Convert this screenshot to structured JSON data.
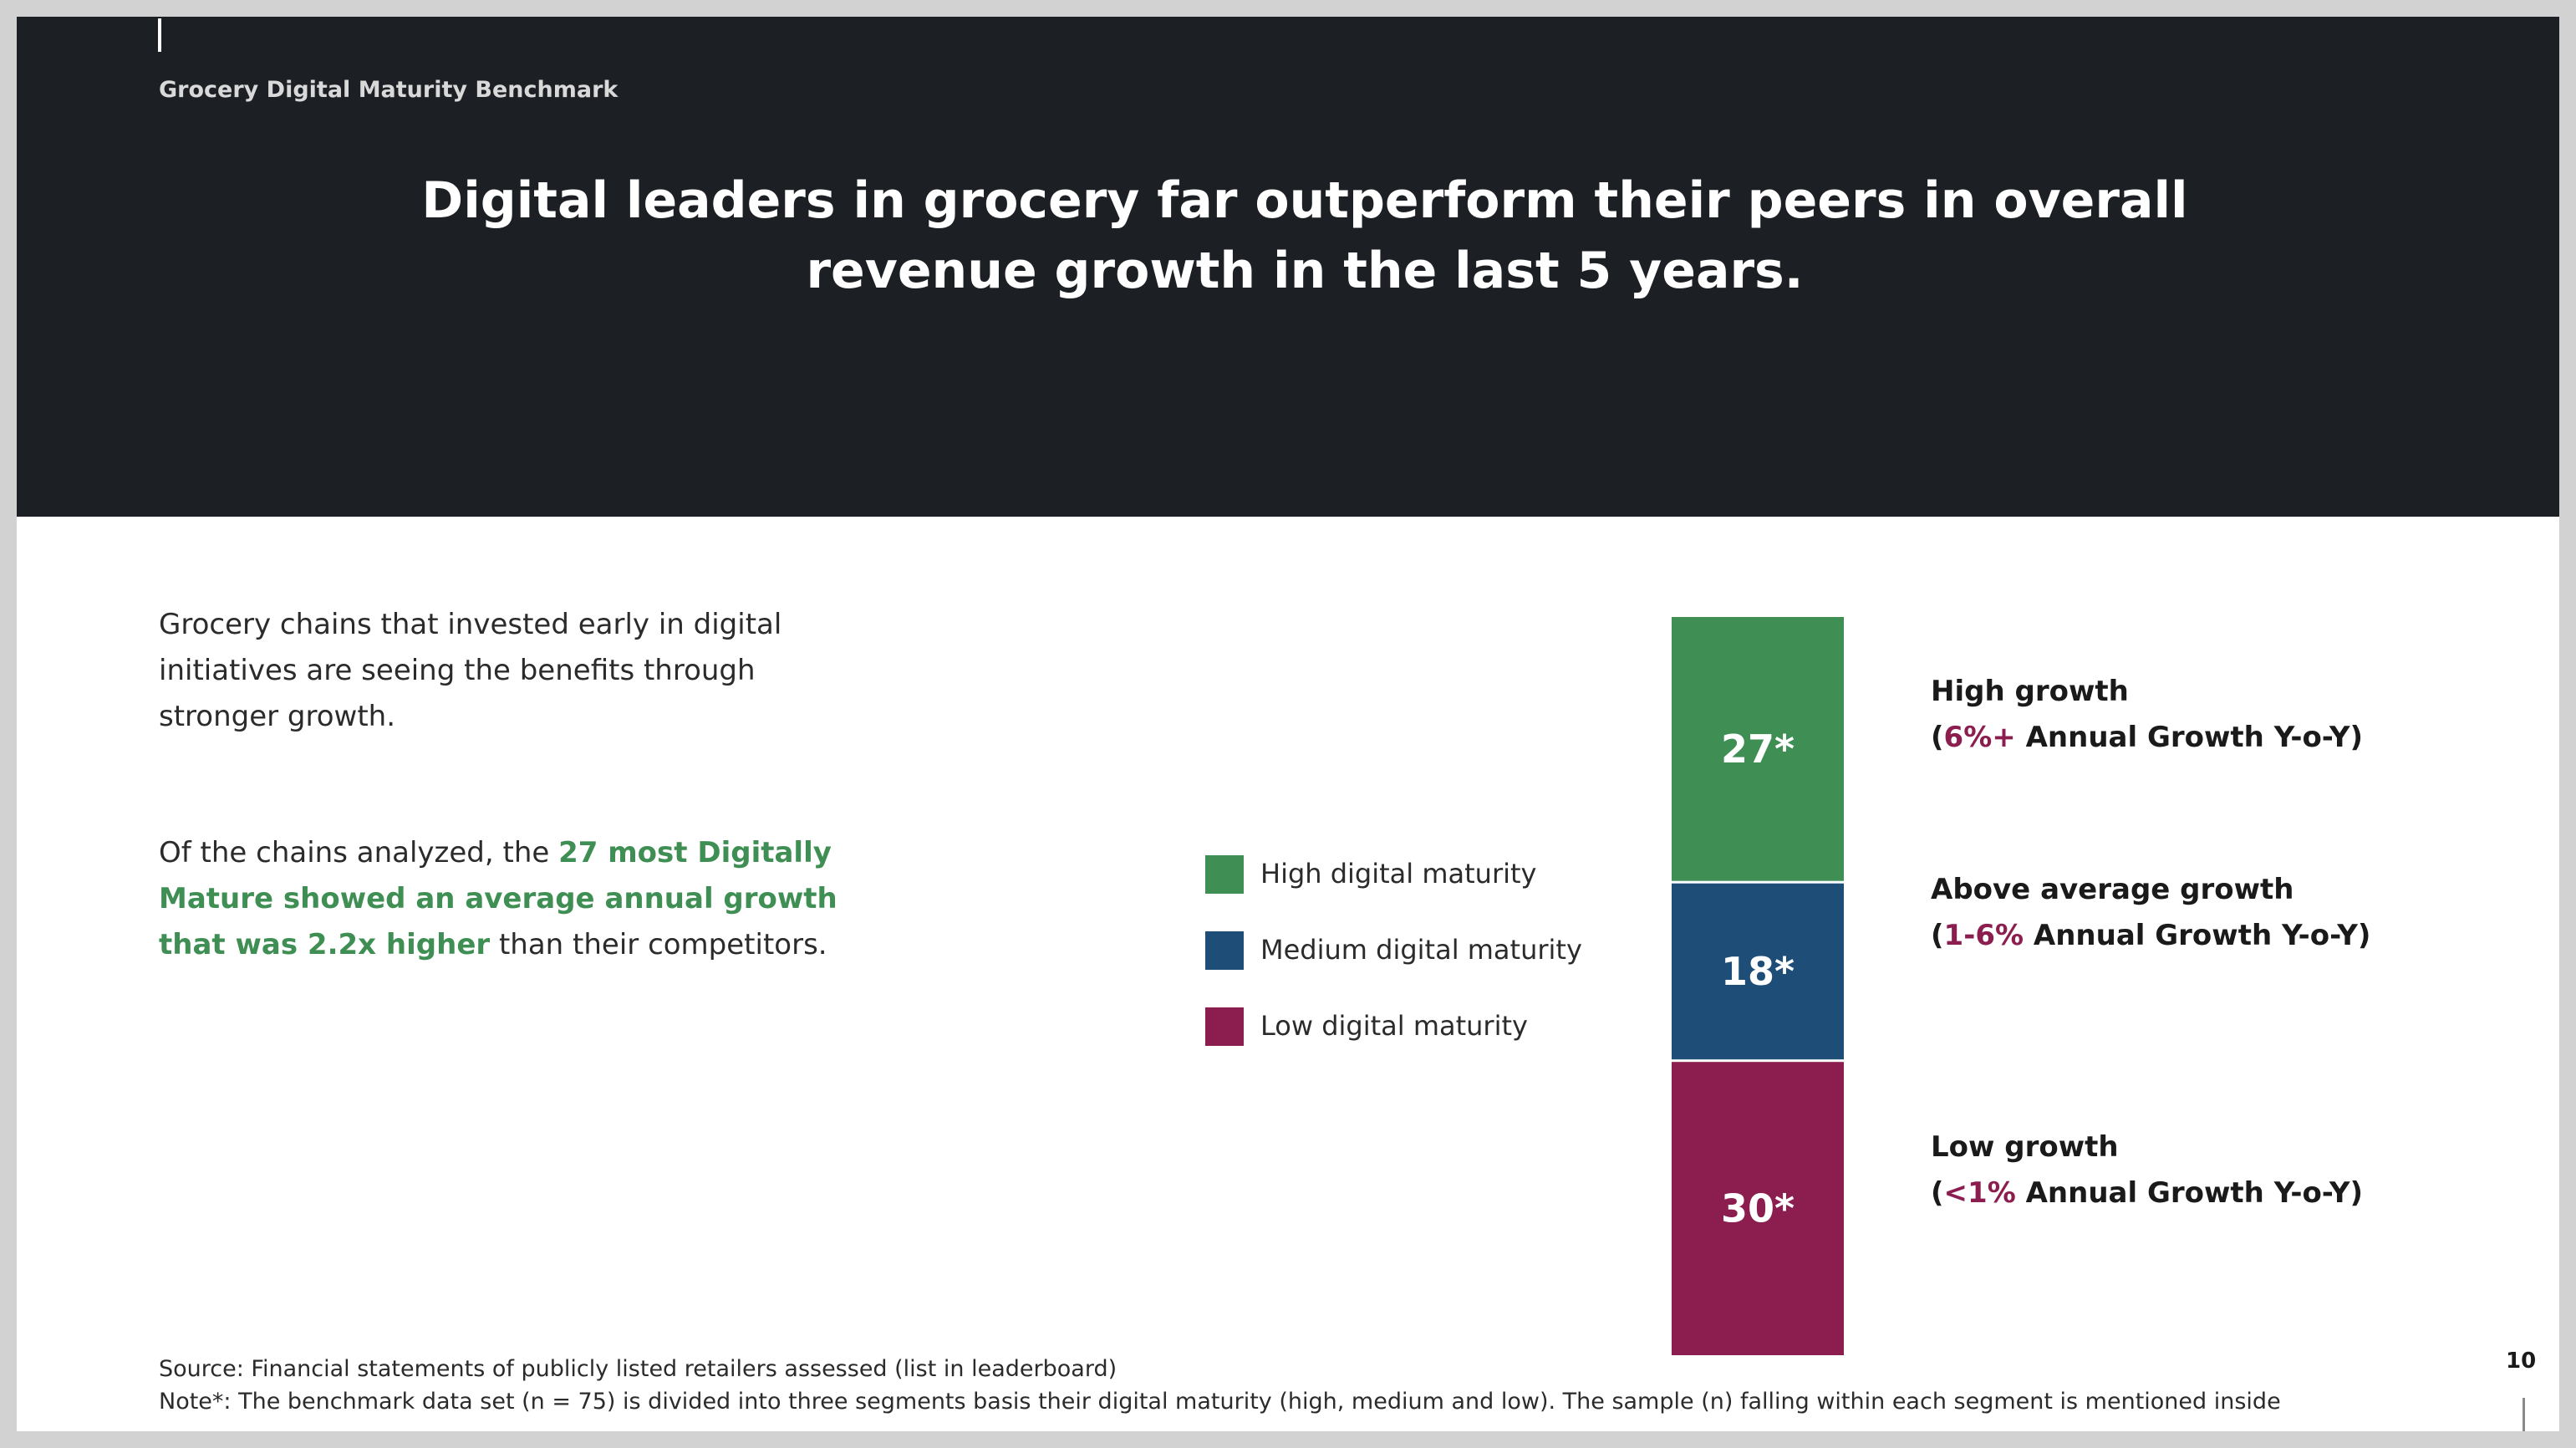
{
  "header": {
    "kicker": "Grocery Digital Maturity Benchmark",
    "headline_line1": "Digital leaders in grocery far outperform their peers in overall",
    "headline_line2": "revenue growth in the last 5 years."
  },
  "intro": {
    "line1": "Grocery chains that invested early in digital",
    "line2": "initiatives are seeing the benefits through",
    "line3": "stronger growth."
  },
  "finding": {
    "line1_prefix": "Of the chains analyzed, the ",
    "line1_highlight": "27 most Digitally",
    "line2_highlight": "Mature showed an average annual growth",
    "line3_highlight": "that was 2.2x higher",
    "line3_suffix": " than their competitors."
  },
  "colors": {
    "high": "#3f8f55",
    "medium": "#1e4e78",
    "low": "#8b1e4f",
    "header_bg": "#1c1f24"
  },
  "legend": [
    {
      "label": "High digital maturity",
      "color": "#3f8f55"
    },
    {
      "label": "Medium digital maturity",
      "color": "#1e4e78"
    },
    {
      "label": "Low digital maturity",
      "color": "#8b1e4f"
    }
  ],
  "chart_data": {
    "type": "bar",
    "stacked": true,
    "categories": [
      ""
    ],
    "series": [
      {
        "values": [
          27
        ],
        "display": "27*",
        "color": "#3f8f55",
        "segment": "high"
      },
      {
        "values": [
          18
        ],
        "display": "18*",
        "color": "#1e4e78",
        "segment": "medium"
      },
      {
        "values": [
          30
        ],
        "display": "30*",
        "color": "#8b1e4f",
        "segment": "low"
      }
    ],
    "total": 75,
    "title": "",
    "xlabel": "",
    "ylabel": "",
    "legend_position": "left",
    "grid": false
  },
  "growth_labels": [
    {
      "title": "High growth",
      "open": "(",
      "range": "6%+",
      "rest": " Annual Growth Y-o-Y)"
    },
    {
      "title": "Above average growth",
      "open": "(",
      "range": "1-6%",
      "rest": " Annual Growth Y-o-Y)"
    },
    {
      "title": "Low growth",
      "open": "(",
      "range": "<1%",
      "rest": " Annual Growth Y-o-Y)"
    }
  ],
  "footer": {
    "source": "Source: Financial statements of publicly listed retailers assessed (list in leaderboard)",
    "note": "Note*: The benchmark data set (n = 75)  is divided into three segments basis their digital maturity (high, medium and low). The sample (n) falling within each segment is mentioned inside",
    "page_number": "10"
  }
}
